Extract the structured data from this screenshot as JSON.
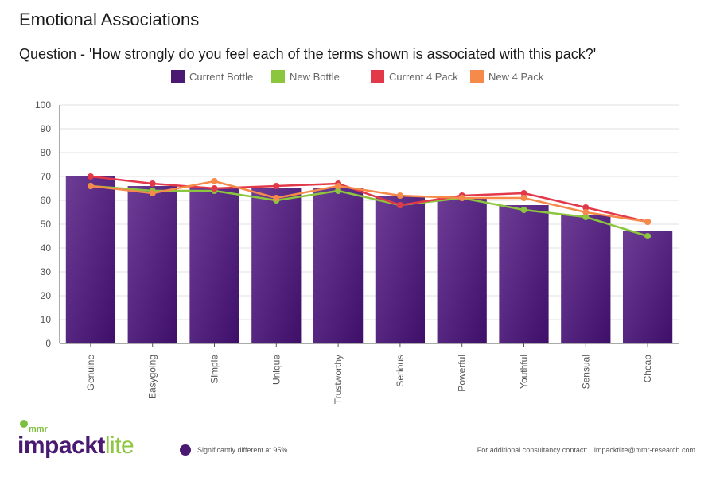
{
  "header": {
    "title": "Emotional Associations",
    "question": "Question - 'How strongly do you feel each of the terms shown is associated with this pack?'"
  },
  "footer": {
    "logo_small": "mmr",
    "logo_word_1": "impackt",
    "logo_word_2": "lite",
    "significance_note": "Significantly different at 95%",
    "contact_label": "For additional consultancy contact:",
    "contact_email": "impacktlite@mmr-research.com"
  },
  "colors": {
    "current_bottle": "#4a1a72",
    "new_bottle": "#8cc63e",
    "current_4_pack": "#e2394a",
    "new_4_pack": "#f58a4b",
    "grid": "#e2e2e2",
    "axis": "#555555"
  },
  "chart_data": {
    "type": "bar",
    "title": "Emotional Associations",
    "subtitle": "Question - 'How strongly do you feel each of the terms shown is associated with this pack?'",
    "xlabel": "",
    "ylabel": "",
    "ylim": [
      0,
      100
    ],
    "yticks": [
      0,
      10,
      20,
      30,
      40,
      50,
      60,
      70,
      80,
      90,
      100
    ],
    "grid": true,
    "legend_position": "top",
    "categories": [
      "Genuine",
      "Easygoing",
      "Simple",
      "Unique",
      "Trustworthy",
      "Serious",
      "Powerful",
      "Youthful",
      "Sensual",
      "Cheap"
    ],
    "series": [
      {
        "name": "Current Bottle",
        "type": "bar",
        "color": "#4a1a72",
        "values": [
          70,
          66,
          65,
          65,
          65,
          62,
          61,
          58,
          54,
          47
        ]
      },
      {
        "name": "New Bottle",
        "type": "line",
        "color": "#8cc63e",
        "values": [
          66,
          64,
          64,
          60,
          64,
          58,
          61,
          56,
          53,
          45
        ]
      },
      {
        "name": "Current 4 Pack",
        "type": "line",
        "color": "#e2394a",
        "values": [
          70,
          67,
          65,
          66,
          67,
          58,
          62,
          63,
          57,
          51
        ]
      },
      {
        "name": "New 4 Pack",
        "type": "line",
        "color": "#f58a4b",
        "values": [
          66,
          63,
          68,
          61,
          66,
          62,
          61,
          61,
          55,
          51
        ]
      }
    ]
  }
}
